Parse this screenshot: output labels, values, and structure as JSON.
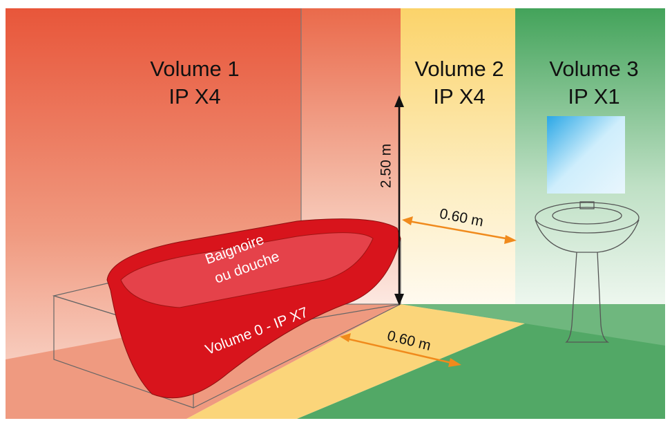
{
  "zones": [
    {
      "name": "Volume 1",
      "rating": "IP X4"
    },
    {
      "name": "Volume 2",
      "rating": "IP X4"
    },
    {
      "name": "Volume 3",
      "rating": "IP X1"
    }
  ],
  "dimensions": {
    "height": "2.50 m",
    "wall_distance": "0.60 m",
    "floor_distance": "0.60 m"
  },
  "bathtub": {
    "label_lines": [
      "Baignoire",
      "ou douche"
    ],
    "zone": "Volume 0 - IP X7"
  }
}
